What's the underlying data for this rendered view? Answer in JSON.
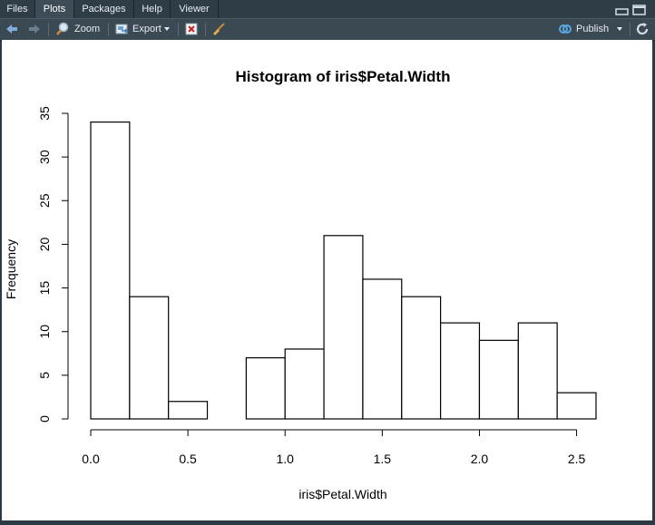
{
  "tabs": [
    {
      "label": "Files",
      "active": false
    },
    {
      "label": "Plots",
      "active": true
    },
    {
      "label": "Packages",
      "active": false
    },
    {
      "label": "Help",
      "active": false
    },
    {
      "label": "Viewer",
      "active": false
    }
  ],
  "toolbar": {
    "zoom_label": "Zoom",
    "export_label": "Export",
    "publish_label": "Publish"
  },
  "chart_data": {
    "type": "bar",
    "title": "Histogram of iris$Petal.Width",
    "xlabel": "iris$Petal.Width",
    "ylabel": "Frequency",
    "bin_edges": [
      0.0,
      0.2,
      0.4,
      0.6,
      0.8,
      1.0,
      1.2,
      1.4,
      1.6,
      1.8,
      2.0,
      2.2,
      2.4,
      2.6
    ],
    "values": [
      34,
      14,
      2,
      0,
      7,
      8,
      21,
      16,
      14,
      11,
      9,
      11,
      3
    ],
    "xlim": [
      0,
      2.6
    ],
    "ylim": [
      0,
      35
    ],
    "x_ticks": [
      "0.0",
      "0.5",
      "1.0",
      "1.5",
      "2.0",
      "2.5"
    ],
    "y_ticks": [
      "0",
      "5",
      "10",
      "15",
      "20",
      "25",
      "30",
      "35"
    ],
    "grid": false
  }
}
